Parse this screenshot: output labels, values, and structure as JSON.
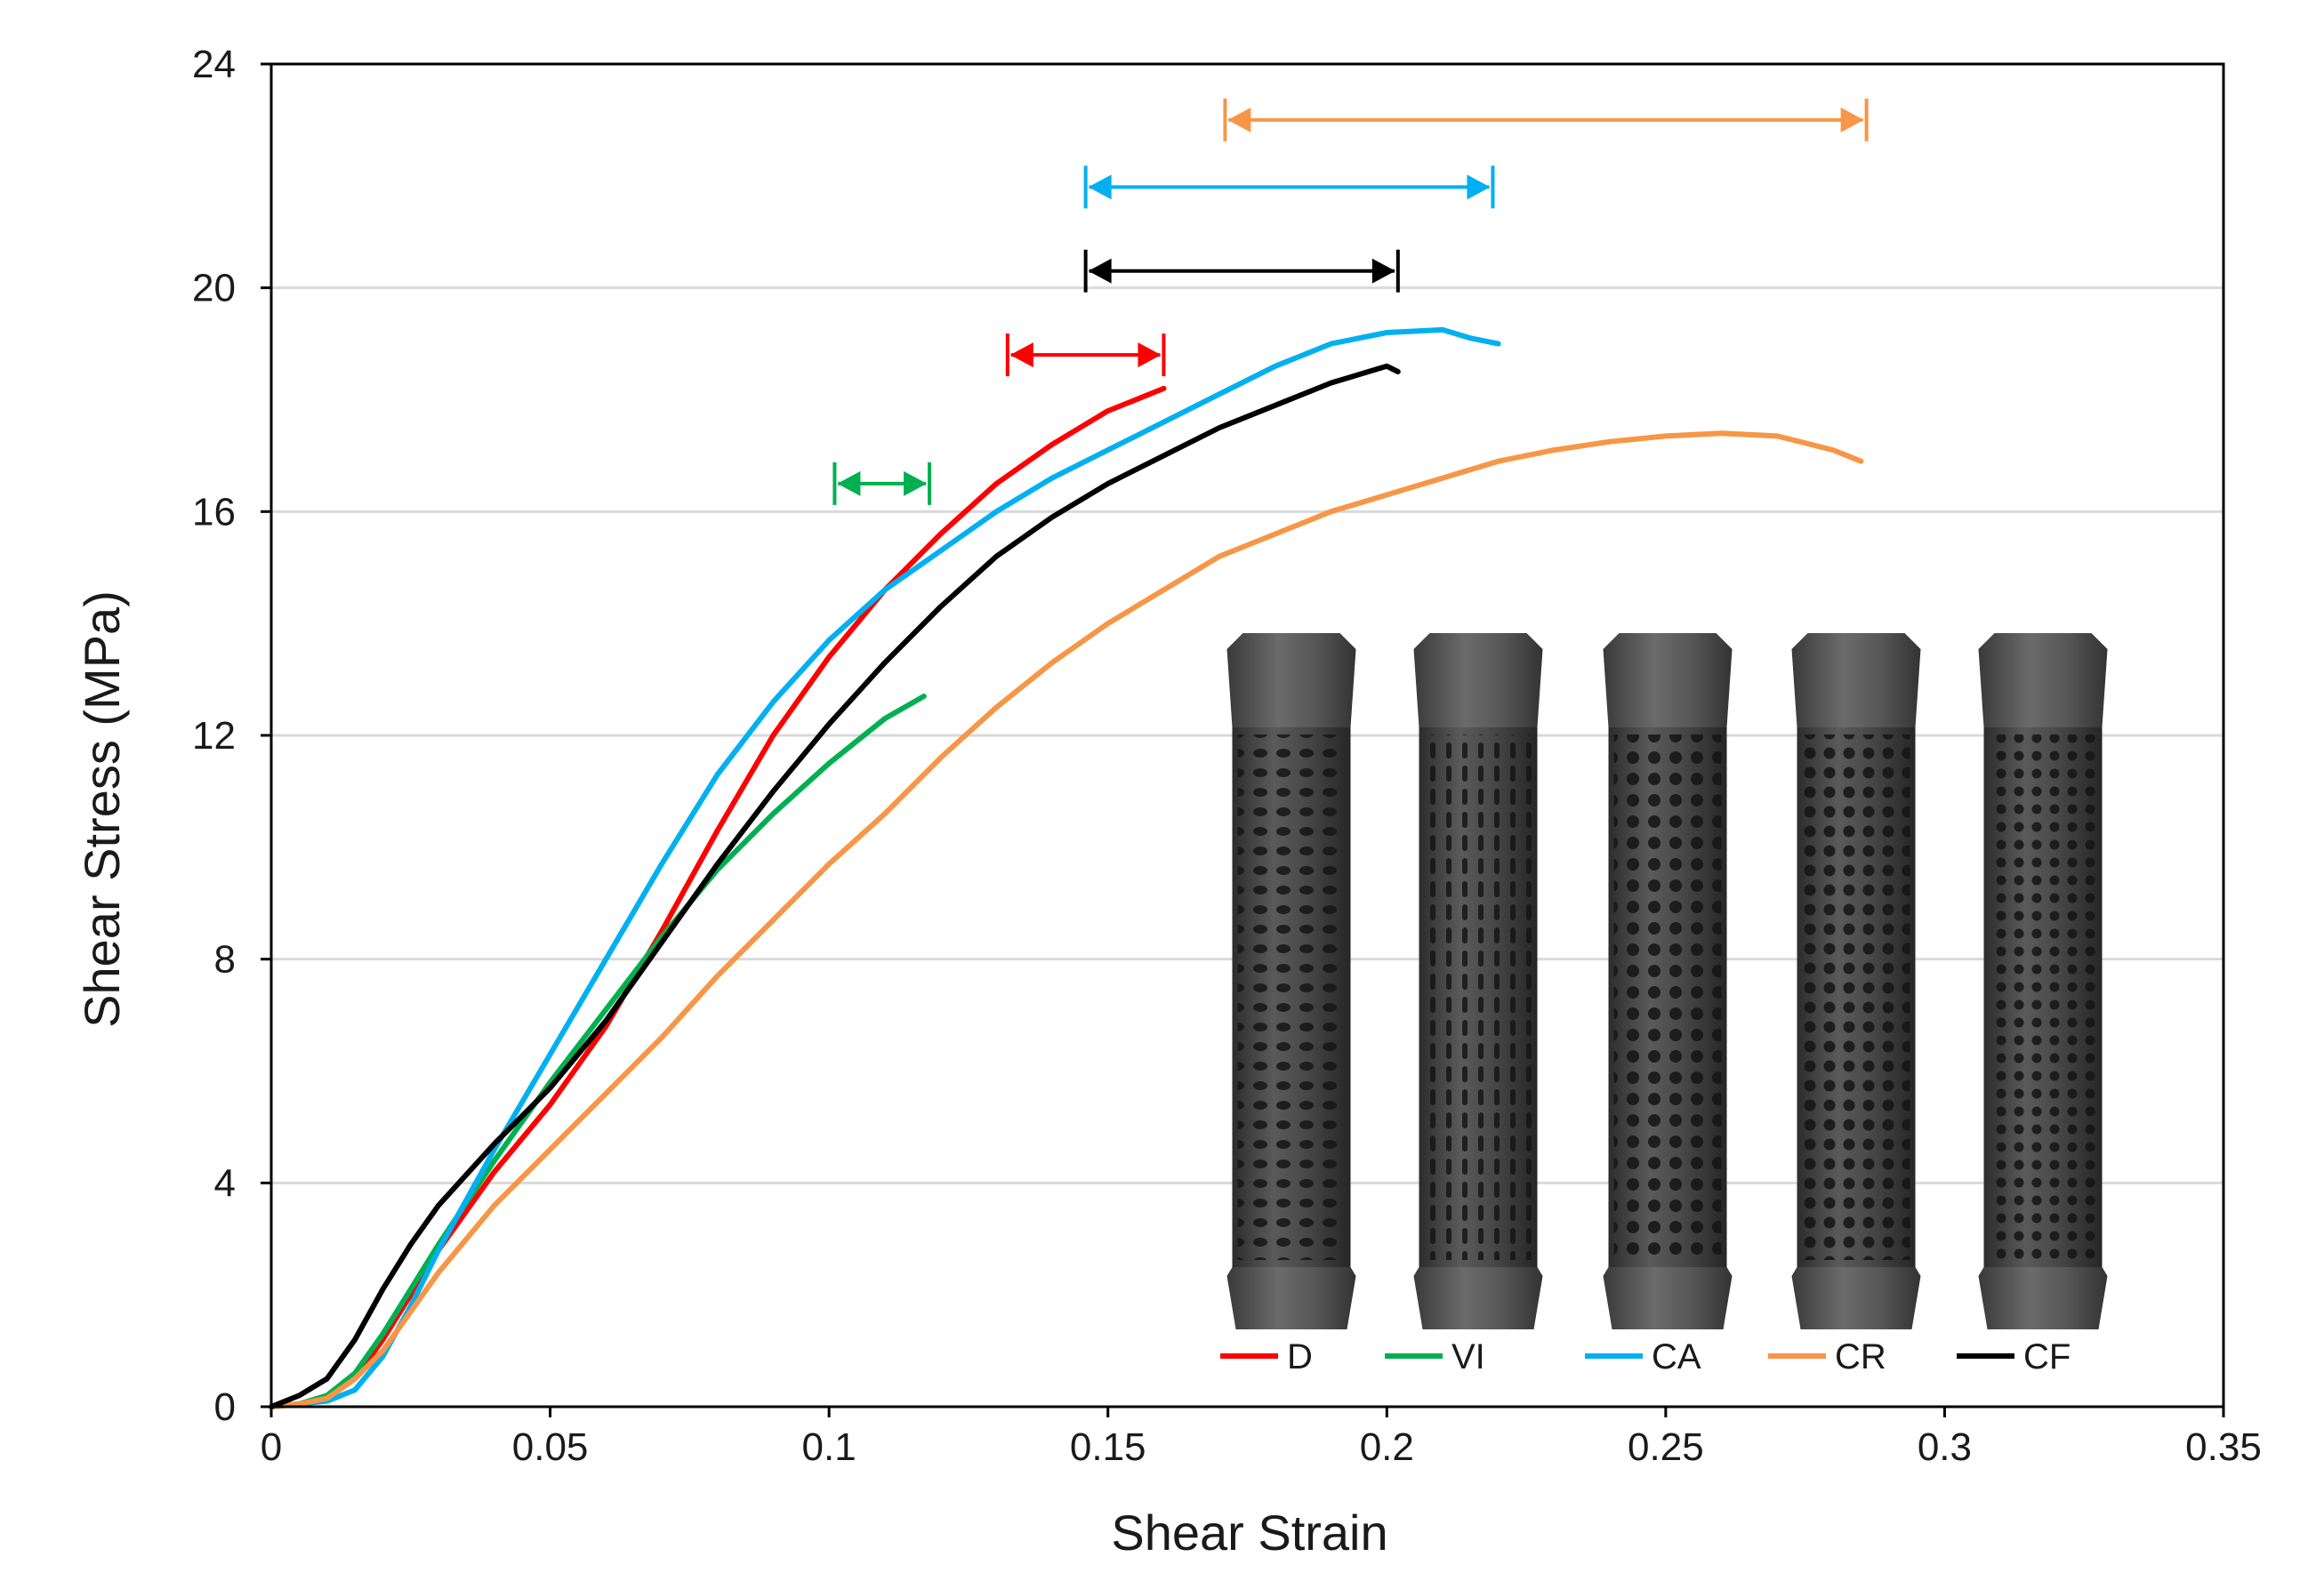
{
  "chart_data": {
    "type": "line",
    "title": "",
    "xlabel": "Shear Strain",
    "ylabel": "Shear Stress (MPa)",
    "xlim": [
      0,
      0.35
    ],
    "ylim": [
      0,
      24
    ],
    "x_ticks": [
      0,
      0.05,
      0.1,
      0.15,
      0.2,
      0.25,
      0.3,
      0.35
    ],
    "x_tick_labels": [
      "0",
      "0.05",
      "0.1",
      "0.15",
      "0.2",
      "0.25",
      "0.3",
      "0.35"
    ],
    "y_ticks": [
      0,
      4,
      8,
      12,
      16,
      20,
      24
    ],
    "y_tick_labels": [
      "0",
      "4",
      "8",
      "12",
      "16",
      "20",
      "24"
    ],
    "grid": "horizontal",
    "legend_position": "bottom-right",
    "series": [
      {
        "name": "D",
        "color": "#ff0000",
        "x": [
          0,
          0.005,
          0.01,
          0.015,
          0.02,
          0.025,
          0.03,
          0.04,
          0.05,
          0.06,
          0.07,
          0.08,
          0.09,
          0.1,
          0.11,
          0.12,
          0.13,
          0.14,
          0.15,
          0.16
        ],
        "y": [
          0,
          0.05,
          0.15,
          0.5,
          1.2,
          2.0,
          2.8,
          4.2,
          5.4,
          6.8,
          8.5,
          10.3,
          12.0,
          13.4,
          14.6,
          15.6,
          16.5,
          17.2,
          17.8,
          18.2
        ]
      },
      {
        "name": "VI",
        "color": "#00b050",
        "x": [
          0,
          0.005,
          0.01,
          0.015,
          0.02,
          0.025,
          0.03,
          0.04,
          0.05,
          0.06,
          0.07,
          0.08,
          0.09,
          0.1,
          0.11,
          0.117
        ],
        "y": [
          0,
          0.05,
          0.2,
          0.6,
          1.3,
          2.1,
          2.9,
          4.4,
          5.8,
          7.1,
          8.4,
          9.6,
          10.6,
          11.5,
          12.3,
          12.7
        ]
      },
      {
        "name": "CA",
        "color": "#00b0f0",
        "x": [
          0,
          0.01,
          0.015,
          0.02,
          0.025,
          0.03,
          0.04,
          0.05,
          0.06,
          0.07,
          0.08,
          0.09,
          0.1,
          0.11,
          0.12,
          0.13,
          0.14,
          0.15,
          0.16,
          0.17,
          0.18,
          0.19,
          0.2,
          0.21,
          0.215,
          0.22
        ],
        "y": [
          0,
          0.1,
          0.3,
          0.9,
          1.8,
          2.8,
          4.6,
          6.3,
          8.0,
          9.7,
          11.3,
          12.6,
          13.7,
          14.6,
          15.3,
          16.0,
          16.6,
          17.1,
          17.6,
          18.1,
          18.6,
          19.0,
          19.2,
          19.25,
          19.1,
          19.0
        ]
      },
      {
        "name": "CR",
        "color": "#f79646",
        "x": [
          0,
          0.005,
          0.01,
          0.015,
          0.02,
          0.025,
          0.03,
          0.04,
          0.05,
          0.06,
          0.07,
          0.08,
          0.09,
          0.1,
          0.11,
          0.12,
          0.13,
          0.14,
          0.15,
          0.16,
          0.17,
          0.18,
          0.19,
          0.2,
          0.21,
          0.22,
          0.23,
          0.24,
          0.25,
          0.26,
          0.27,
          0.28,
          0.285
        ],
        "y": [
          0,
          0.05,
          0.15,
          0.5,
          1.0,
          1.7,
          2.4,
          3.6,
          4.6,
          5.6,
          6.6,
          7.7,
          8.7,
          9.7,
          10.6,
          11.6,
          12.5,
          13.3,
          14.0,
          14.6,
          15.2,
          15.6,
          16.0,
          16.3,
          16.6,
          16.9,
          17.1,
          17.25,
          17.35,
          17.4,
          17.35,
          17.1,
          16.9
        ]
      },
      {
        "name": "CF",
        "color": "#000000",
        "x": [
          0,
          0.005,
          0.01,
          0.015,
          0.02,
          0.025,
          0.03,
          0.04,
          0.05,
          0.06,
          0.07,
          0.08,
          0.09,
          0.1,
          0.11,
          0.12,
          0.13,
          0.14,
          0.15,
          0.16,
          0.17,
          0.18,
          0.19,
          0.2,
          0.202
        ],
        "y": [
          0,
          0.2,
          0.5,
          1.2,
          2.1,
          2.9,
          3.6,
          4.7,
          5.7,
          6.9,
          8.3,
          9.7,
          11.0,
          12.2,
          13.3,
          14.3,
          15.2,
          15.9,
          16.5,
          17.0,
          17.5,
          17.9,
          18.3,
          18.6,
          18.5
        ]
      }
    ],
    "annotations": [
      {
        "series": "CR",
        "type": "range-arrow",
        "x_start": 0.171,
        "x_end": 0.286,
        "y": 23.0
      },
      {
        "series": "CA",
        "type": "range-arrow",
        "x_start": 0.146,
        "x_end": 0.219,
        "y": 21.8
      },
      {
        "series": "CF",
        "type": "range-arrow",
        "x_start": 0.146,
        "x_end": 0.202,
        "y": 20.3
      },
      {
        "series": "D",
        "type": "range-arrow",
        "x_start": 0.132,
        "x_end": 0.16,
        "y": 18.8
      },
      {
        "series": "VI",
        "type": "range-arrow",
        "x_start": 0.101,
        "x_end": 0.118,
        "y": 16.5
      }
    ],
    "inset": {
      "description": "Photo of five 3D-printed hexagonal-ended lattice tube specimens",
      "specimens": 5
    },
    "legend": [
      "D",
      "VI",
      "CA",
      "CR",
      "CF"
    ]
  }
}
